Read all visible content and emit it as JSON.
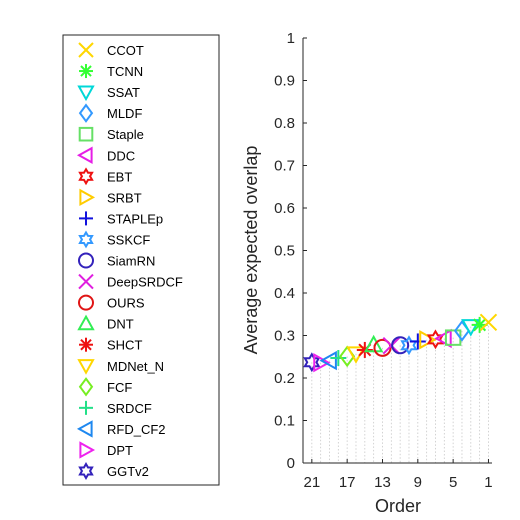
{
  "chart_data": {
    "type": "scatter",
    "title": "",
    "xlabel": "Order",
    "ylabel": "Average expected overlap",
    "xlim": [
      22,
      0.6
    ],
    "x_reversed": true,
    "ylim": [
      0,
      1
    ],
    "xticks": [
      21,
      17,
      13,
      9,
      5,
      1
    ],
    "yticks": [
      0,
      0.1,
      0.2,
      0.3,
      0.4,
      0.5,
      0.6,
      0.7,
      0.8,
      0.9,
      1
    ],
    "grid": "vertical dotted lines from each point down to 0",
    "legend_position": "left, outside plot",
    "series": [
      {
        "name": "CCOT",
        "order": 1,
        "value": 0.331,
        "color": "#ffd700",
        "marker": "x"
      },
      {
        "name": "TCNN",
        "order": 2,
        "value": 0.325,
        "color": "#33ff33",
        "marker": "asterisk"
      },
      {
        "name": "SSAT",
        "order": 3,
        "value": 0.321,
        "color": "#00d8d8",
        "marker": "triangle-down"
      },
      {
        "name": "MLDF",
        "order": 4,
        "value": 0.311,
        "color": "#3399ff",
        "marker": "diamond"
      },
      {
        "name": "Staple",
        "order": 5,
        "value": 0.295,
        "color": "#66e066",
        "marker": "square"
      },
      {
        "name": "DDC",
        "order": 6,
        "value": 0.293,
        "color": "#e61ee6",
        "marker": "triangle-left"
      },
      {
        "name": "EBT",
        "order": 7,
        "value": 0.291,
        "color": "#ee1111",
        "marker": "hexagram"
      },
      {
        "name": "SRBT",
        "order": 8,
        "value": 0.29,
        "color": "#ffcc00",
        "marker": "triangle-right"
      },
      {
        "name": "STAPLEp",
        "order": 9,
        "value": 0.286,
        "color": "#1111dd",
        "marker": "plus"
      },
      {
        "name": "SSKCF",
        "order": 10,
        "value": 0.277,
        "color": "#3399ff",
        "marker": "hexagram"
      },
      {
        "name": "SiamRN",
        "order": 11,
        "value": 0.277,
        "color": "#3322bb",
        "marker": "circle"
      },
      {
        "name": "DeepSRDCF",
        "order": 12,
        "value": 0.276,
        "color": "#e01ee0",
        "marker": "x"
      },
      {
        "name": "OURS",
        "order": 13,
        "value": 0.271,
        "color": "#e01515",
        "marker": "circle"
      },
      {
        "name": "DNT",
        "order": 14,
        "value": 0.278,
        "color": "#33ee55",
        "marker": "triangle-up"
      },
      {
        "name": "SHCT",
        "order": 15,
        "value": 0.266,
        "color": "#ee1111",
        "marker": "asterisk"
      },
      {
        "name": "MDNet_N",
        "order": 16,
        "value": 0.257,
        "color": "#ffd700",
        "marker": "triangle-down"
      },
      {
        "name": "FCF",
        "order": 17,
        "value": 0.251,
        "color": "#77ee22",
        "marker": "diamond"
      },
      {
        "name": "SRDCF",
        "order": 18,
        "value": 0.247,
        "color": "#22e088",
        "marker": "plus"
      },
      {
        "name": "RFD_CF2",
        "order": 19,
        "value": 0.241,
        "color": "#1e88f0",
        "marker": "triangle-left"
      },
      {
        "name": "DPT",
        "order": 20,
        "value": 0.236,
        "color": "#ee22ee",
        "marker": "triangle-right"
      },
      {
        "name": "GGTv2",
        "order": 21,
        "value": 0.237,
        "color": "#3322bb",
        "marker": "hexagram"
      }
    ]
  }
}
